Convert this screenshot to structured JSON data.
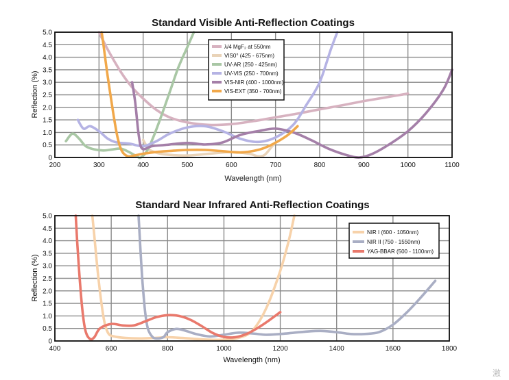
{
  "watermark": "激",
  "chart_data": [
    {
      "type": "line",
      "title": "Standard Visible Anti-Reflection Coatings",
      "xlabel": "Wavelength (nm)",
      "ylabel": "Reflection (%)",
      "xlim": [
        200,
        1100
      ],
      "ylim": [
        0,
        5
      ],
      "x_ticks": [
        200,
        300,
        400,
        500,
        600,
        700,
        800,
        900,
        1000,
        1100
      ],
      "y_ticks": [
        0,
        0.5,
        1.0,
        1.5,
        2.0,
        2.5,
        3.0,
        3.5,
        4.0,
        4.5,
        5.0
      ],
      "grid": true,
      "legend_position": "top-center",
      "series": [
        {
          "name": "λ/4 MgF₂ at 550nm",
          "color": "#d7b2c0",
          "points": [
            [
              300,
              5.0
            ],
            [
              320,
              4.3
            ],
            [
              350,
              3.4
            ],
            [
              375,
              2.8
            ],
            [
              400,
              2.35
            ],
            [
              430,
              1.9
            ],
            [
              460,
              1.6
            ],
            [
              500,
              1.4
            ],
            [
              550,
              1.3
            ],
            [
              600,
              1.33
            ],
            [
              650,
              1.45
            ],
            [
              700,
              1.6
            ],
            [
              750,
              1.75
            ],
            [
              800,
              1.92
            ],
            [
              850,
              2.08
            ],
            [
              900,
              2.25
            ],
            [
              950,
              2.4
            ],
            [
              1000,
              2.55
            ]
          ]
        },
        {
          "name": "VIS0° (425 - 675nm)",
          "color": "#e9d3b8",
          "points": [
            [
              400,
              0.7
            ],
            [
              412,
              0.35
            ],
            [
              425,
              0.22
            ],
            [
              450,
              0.12
            ],
            [
              500,
              0.08
            ],
            [
              550,
              0.15
            ],
            [
              600,
              0.22
            ],
            [
              640,
              0.15
            ],
            [
              660,
              0.05
            ],
            [
              675,
              0.1
            ],
            [
              690,
              0.4
            ],
            [
              700,
              0.6
            ]
          ]
        },
        {
          "name": "UV-AR (250 - 425nm)",
          "color": "#a9c7a5",
          "points": [
            [
              225,
              0.65
            ],
            [
              240,
              0.95
            ],
            [
              255,
              0.75
            ],
            [
              270,
              0.45
            ],
            [
              290,
              0.32
            ],
            [
              310,
              0.28
            ],
            [
              330,
              0.32
            ],
            [
              350,
              0.35
            ],
            [
              370,
              0.2
            ],
            [
              385,
              0.05
            ],
            [
              395,
              0.0
            ],
            [
              410,
              0.3
            ],
            [
              425,
              0.9
            ],
            [
              440,
              1.6
            ],
            [
              460,
              2.6
            ],
            [
              480,
              3.6
            ],
            [
              500,
              4.4
            ],
            [
              515,
              5.0
            ]
          ]
        },
        {
          "name": "UV-VIS (250 - 700nm)",
          "color": "#b5b3e4",
          "points": [
            [
              252,
              1.5
            ],
            [
              265,
              1.15
            ],
            [
              280,
              1.25
            ],
            [
              300,
              1.05
            ],
            [
              320,
              0.75
            ],
            [
              340,
              0.6
            ],
            [
              370,
              0.55
            ],
            [
              400,
              0.45
            ],
            [
              430,
              0.65
            ],
            [
              460,
              0.95
            ],
            [
              500,
              1.2
            ],
            [
              540,
              1.25
            ],
            [
              580,
              1.05
            ],
            [
              620,
              0.75
            ],
            [
              660,
              0.62
            ],
            [
              700,
              0.8
            ],
            [
              740,
              1.3
            ],
            [
              770,
              2.1
            ],
            [
              800,
              3.0
            ],
            [
              825,
              4.3
            ],
            [
              840,
              5.0
            ]
          ]
        },
        {
          "name": "VIS-NIR (400 - 1000nm)",
          "color": "#a47fa8",
          "points": [
            [
              375,
              3.0
            ],
            [
              382,
              2.2
            ],
            [
              390,
              0.9
            ],
            [
              398,
              0.35
            ],
            [
              420,
              0.45
            ],
            [
              450,
              0.5
            ],
            [
              500,
              0.58
            ],
            [
              540,
              0.52
            ],
            [
              580,
              0.6
            ],
            [
              620,
              0.9
            ],
            [
              660,
              1.05
            ],
            [
              700,
              1.15
            ],
            [
              740,
              1.0
            ],
            [
              780,
              0.7
            ],
            [
              820,
              0.35
            ],
            [
              860,
              0.1
            ],
            [
              890,
              0.0
            ],
            [
              920,
              0.15
            ],
            [
              960,
              0.55
            ],
            [
              1000,
              1.05
            ],
            [
              1040,
              1.75
            ],
            [
              1080,
              2.7
            ],
            [
              1100,
              3.5
            ]
          ]
        },
        {
          "name": "VIS-EXT (350 - 700nm)",
          "color": "#f1a84a",
          "points": [
            [
              306,
              5.0
            ],
            [
              310,
              4.5
            ],
            [
              320,
              3.2
            ],
            [
              332,
              1.8
            ],
            [
              342,
              0.8
            ],
            [
              352,
              0.25
            ],
            [
              365,
              0.05
            ],
            [
              380,
              0.08
            ],
            [
              400,
              0.15
            ],
            [
              430,
              0.22
            ],
            [
              460,
              0.26
            ],
            [
              500,
              0.3
            ],
            [
              540,
              0.3
            ],
            [
              580,
              0.25
            ],
            [
              620,
              0.2
            ],
            [
              660,
              0.3
            ],
            [
              690,
              0.5
            ],
            [
              720,
              0.8
            ],
            [
              735,
              1.0
            ],
            [
              750,
              1.25
            ]
          ]
        }
      ]
    },
    {
      "type": "line",
      "title": "Standard Near Infrared Anti-Reflection Coatings",
      "xlabel": "Wavelength (nm)",
      "ylabel": "Reflection (%)",
      "xlim": [
        400,
        1800
      ],
      "ylim": [
        0,
        5
      ],
      "x_ticks": [
        400,
        600,
        800,
        1000,
        1200,
        1400,
        1600,
        1800
      ],
      "y_ticks": [
        0,
        0.5,
        1.0,
        1.5,
        2.0,
        2.5,
        3.0,
        3.5,
        4.0,
        4.5,
        5.0
      ],
      "grid": true,
      "legend_position": "top-right",
      "series": [
        {
          "name": "NIR I (600 - 1050nm)",
          "color": "#f7d2aa",
          "points": [
            [
              533,
              5.0
            ],
            [
              540,
              4.2
            ],
            [
              550,
              3.0
            ],
            [
              562,
              1.8
            ],
            [
              575,
              0.8
            ],
            [
              590,
              0.3
            ],
            [
              610,
              0.18
            ],
            [
              650,
              0.12
            ],
            [
              700,
              0.1
            ],
            [
              750,
              0.12
            ],
            [
              800,
              0.15
            ],
            [
              850,
              0.12
            ],
            [
              900,
              0.08
            ],
            [
              950,
              0.05
            ],
            [
              1000,
              0.05
            ],
            [
              1050,
              0.12
            ],
            [
              1100,
              0.4
            ],
            [
              1150,
              1.3
            ],
            [
              1200,
              2.8
            ],
            [
              1230,
              4.0
            ],
            [
              1250,
              5.0
            ]
          ]
        },
        {
          "name": "NIR II (750 - 1550nm)",
          "color": "#a9aec4",
          "points": [
            [
              697,
              5.0
            ],
            [
              702,
              4.0
            ],
            [
              710,
              2.5
            ],
            [
              720,
              1.2
            ],
            [
              730,
              0.5
            ],
            [
              745,
              0.18
            ],
            [
              760,
              0.1
            ],
            [
              785,
              0.15
            ],
            [
              800,
              0.35
            ],
            [
              830,
              0.48
            ],
            [
              860,
              0.42
            ],
            [
              900,
              0.28
            ],
            [
              950,
              0.18
            ],
            [
              1000,
              0.25
            ],
            [
              1050,
              0.33
            ],
            [
              1100,
              0.3
            ],
            [
              1150,
              0.25
            ],
            [
              1200,
              0.28
            ],
            [
              1300,
              0.38
            ],
            [
              1350,
              0.4
            ],
            [
              1400,
              0.35
            ],
            [
              1450,
              0.28
            ],
            [
              1500,
              0.28
            ],
            [
              1550,
              0.35
            ],
            [
              1600,
              0.65
            ],
            [
              1650,
              1.15
            ],
            [
              1700,
              1.75
            ],
            [
              1750,
              2.4
            ]
          ]
        },
        {
          "name": "YAG-BBAR (500 - 1100nm)",
          "color": "#e9796c",
          "points": [
            [
              474,
              5.0
            ],
            [
              480,
              3.8
            ],
            [
              490,
              2.2
            ],
            [
              500,
              1.0
            ],
            [
              510,
              0.35
            ],
            [
              525,
              0.08
            ],
            [
              540,
              0.15
            ],
            [
              560,
              0.5
            ],
            [
              600,
              0.68
            ],
            [
              640,
              0.62
            ],
            [
              680,
              0.62
            ],
            [
              720,
              0.78
            ],
            [
              760,
              0.95
            ],
            [
              800,
              1.03
            ],
            [
              840,
              1.0
            ],
            [
              880,
              0.85
            ],
            [
              920,
              0.6
            ],
            [
              960,
              0.32
            ],
            [
              1000,
              0.16
            ],
            [
              1040,
              0.15
            ],
            [
              1080,
              0.28
            ],
            [
              1120,
              0.52
            ],
            [
              1160,
              0.82
            ],
            [
              1200,
              1.15
            ]
          ]
        }
      ]
    }
  ]
}
